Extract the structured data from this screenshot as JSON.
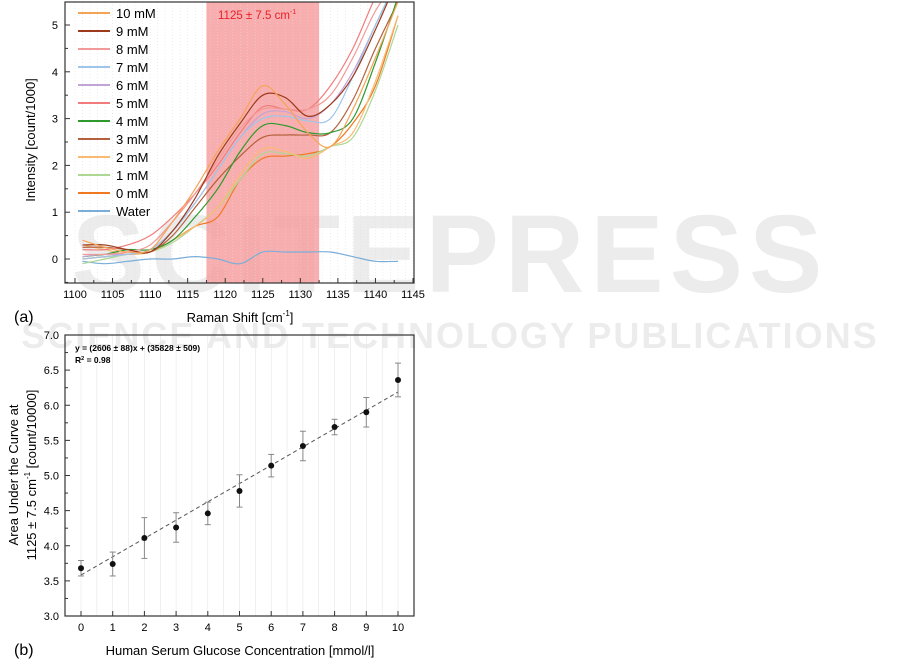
{
  "watermark": {
    "main": "SCITEPRESS",
    "sub": "SCIENCE AND TECHNOLOGY PUBLICATIONS"
  },
  "chart_data": [
    {
      "panel_label": "(a)",
      "type": "line",
      "xlabel": "Raman Shift [cm",
      "xlabel_sup": "-1",
      "xlabel_end": "]",
      "ylabel": "Intensity [count/1000]",
      "xlim": [
        1098.5,
        1146
      ],
      "ylim": [
        -0.5,
        5.5
      ],
      "xticks": [
        1100,
        1105,
        1110,
        1115,
        1120,
        1125,
        1130,
        1135,
        1140,
        1145
      ],
      "yticks": [
        0,
        1,
        2,
        3,
        4,
        5
      ],
      "grid": "vertical",
      "legend": "top-left",
      "highlight_band": {
        "range": [
          1117.5,
          1132.5
        ],
        "label": "1125 ± 7.5 cm",
        "label_sup": "-1",
        "color": "#f7a0a0",
        "label_color": "#e8202a"
      },
      "x": [
        1101,
        1104,
        1107,
        1110,
        1113,
        1116,
        1119,
        1122,
        1125,
        1128,
        1131,
        1134,
        1137,
        1140,
        1143
      ],
      "series": [
        {
          "name": "10 mM",
          "color": "#f5a455",
          "values": [
            0.4,
            0.25,
            0.15,
            0.2,
            0.8,
            1.5,
            2.3,
            3.0,
            3.7,
            3.3,
            2.7,
            2.4,
            3.2,
            4.3,
            5.5
          ]
        },
        {
          "name": "9 mM",
          "color": "#9e3a1c",
          "values": [
            0.3,
            0.3,
            0.2,
            0.15,
            0.6,
            1.3,
            2.2,
            2.9,
            3.5,
            3.45,
            3.05,
            3.3,
            3.9,
            4.9,
            6.0
          ]
        },
        {
          "name": "8 mM",
          "color": "#f29a9a",
          "values": [
            0.1,
            0.1,
            0.15,
            0.3,
            0.8,
            1.4,
            2.1,
            2.8,
            3.2,
            3.2,
            3.2,
            3.5,
            4.3,
            5.3,
            6.0
          ]
        },
        {
          "name": "7 mM",
          "color": "#9ec6ea",
          "values": [
            0.0,
            0.05,
            0.1,
            0.2,
            0.6,
            1.2,
            1.9,
            2.6,
            3.0,
            3.05,
            2.95,
            3.0,
            3.9,
            5.0,
            6.0
          ]
        },
        {
          "name": "6 mM",
          "color": "#c2a4d6",
          "values": [
            0.05,
            0.1,
            0.1,
            0.2,
            0.6,
            1.2,
            1.9,
            2.6,
            3.1,
            3.15,
            3.0,
            3.3,
            4.0,
            5.0,
            6.0
          ]
        },
        {
          "name": "5 mM",
          "color": "#f27c7c",
          "values": [
            0.2,
            0.2,
            0.3,
            0.5,
            0.9,
            1.4,
            2.0,
            2.7,
            3.25,
            3.2,
            3.2,
            3.7,
            4.5,
            5.6,
            6.5
          ]
        },
        {
          "name": "4 mM",
          "color": "#2e9a2e",
          "values": [
            0.05,
            0.1,
            0.2,
            0.2,
            0.4,
            0.9,
            1.5,
            2.3,
            2.85,
            2.85,
            2.7,
            2.7,
            3.0,
            4.2,
            5.6
          ]
        },
        {
          "name": "3 mM",
          "color": "#b4603c",
          "values": [
            0.25,
            0.25,
            0.2,
            0.15,
            0.5,
            1.1,
            1.7,
            2.2,
            2.6,
            2.65,
            2.65,
            2.7,
            3.4,
            4.5,
            5.5
          ]
        },
        {
          "name": "2 mM",
          "color": "#f8bb72",
          "values": [
            0.3,
            0.2,
            0.1,
            0.15,
            0.4,
            0.7,
            1.1,
            1.8,
            2.35,
            2.3,
            2.15,
            2.4,
            2.7,
            3.8,
            5.2
          ]
        },
        {
          "name": "1 mM",
          "color": "#acd894",
          "values": [
            -0.1,
            0.0,
            0.1,
            0.15,
            0.35,
            0.7,
            1.1,
            1.7,
            2.25,
            2.25,
            2.2,
            2.4,
            2.6,
            3.6,
            5.0
          ]
        },
        {
          "name": "0 mM",
          "color": "#f07820",
          "values": [
            0.0,
            0.05,
            0.1,
            0.15,
            0.4,
            0.7,
            0.9,
            1.7,
            2.15,
            2.2,
            2.25,
            2.4,
            2.9,
            3.7,
            5.2
          ]
        },
        {
          "name": "Water",
          "color": "#7aaed8",
          "values": [
            -0.05,
            -0.1,
            -0.05,
            0.0,
            0.0,
            0.05,
            0.0,
            -0.1,
            0.15,
            0.15,
            0.15,
            0.15,
            0.05,
            -0.05,
            -0.05
          ]
        }
      ]
    },
    {
      "panel_label": "(b)",
      "type": "scatter",
      "xlabel": "Human Serum Glucose Concentration [mmol/l]",
      "ylabel_line1": "Area Under the Curve at",
      "ylabel_line2": "1125 ± 7.5 cm",
      "ylabel_line2_sup": "-1",
      "ylabel_line2_end": " [count/10000]",
      "xlim": [
        -0.5,
        10.5
      ],
      "ylim": [
        3.0,
        7.0
      ],
      "xticks": [
        0,
        1,
        2,
        3,
        4,
        5,
        6,
        7,
        8,
        9,
        10
      ],
      "yticks": [
        "3.0",
        "3.5",
        "4.0",
        "4.5",
        "5.0",
        "5.5",
        "6.0",
        "6.5",
        "7.0"
      ],
      "grid": "vertical",
      "x": [
        0,
        1,
        2,
        3,
        4,
        5,
        6,
        7,
        8,
        9,
        10
      ],
      "y": [
        3.68,
        3.74,
        4.11,
        4.26,
        4.46,
        4.78,
        5.14,
        5.42,
        5.69,
        5.9,
        6.36
      ],
      "error": [
        0.11,
        0.17,
        0.29,
        0.21,
        0.16,
        0.23,
        0.16,
        0.21,
        0.11,
        0.21,
        0.24
      ],
      "fit": {
        "slope": 0.2606,
        "intercept": 3.5828,
        "style": "dashed"
      },
      "annotation_equation": "y = (2606 ± 88)x + (35828 ± 509)",
      "annotation_r2_prefix": "R",
      "annotation_r2_sup": "2",
      "annotation_r2_value": " = 0.98"
    }
  ]
}
